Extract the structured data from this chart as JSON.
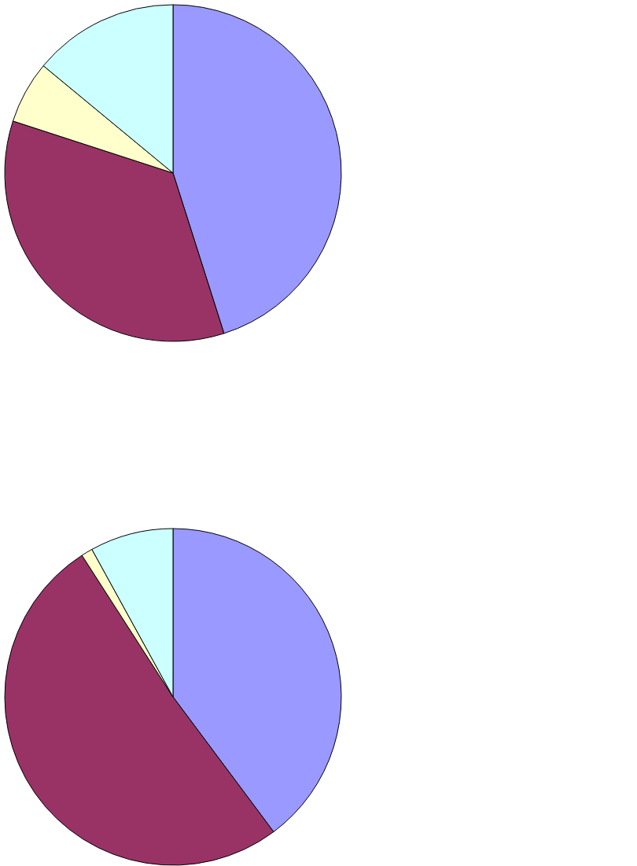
{
  "chart_data": [
    {
      "type": "pie",
      "categories": [
        null,
        null,
        null,
        null
      ],
      "values": [
        45.1,
        34.9,
        6.0,
        14.0
      ],
      "colors": [
        "#9999ff",
        "#993366",
        "#ffffcc",
        "#ccffff"
      ],
      "legend": false
    },
    {
      "type": "pie",
      "categories": [
        null,
        null,
        null,
        null
      ],
      "values": [
        39.8,
        51.1,
        1.1,
        8.0
      ],
      "colors": [
        "#9999ff",
        "#993366",
        "#ffffcc",
        "#ccffff"
      ],
      "legend": false
    }
  ]
}
